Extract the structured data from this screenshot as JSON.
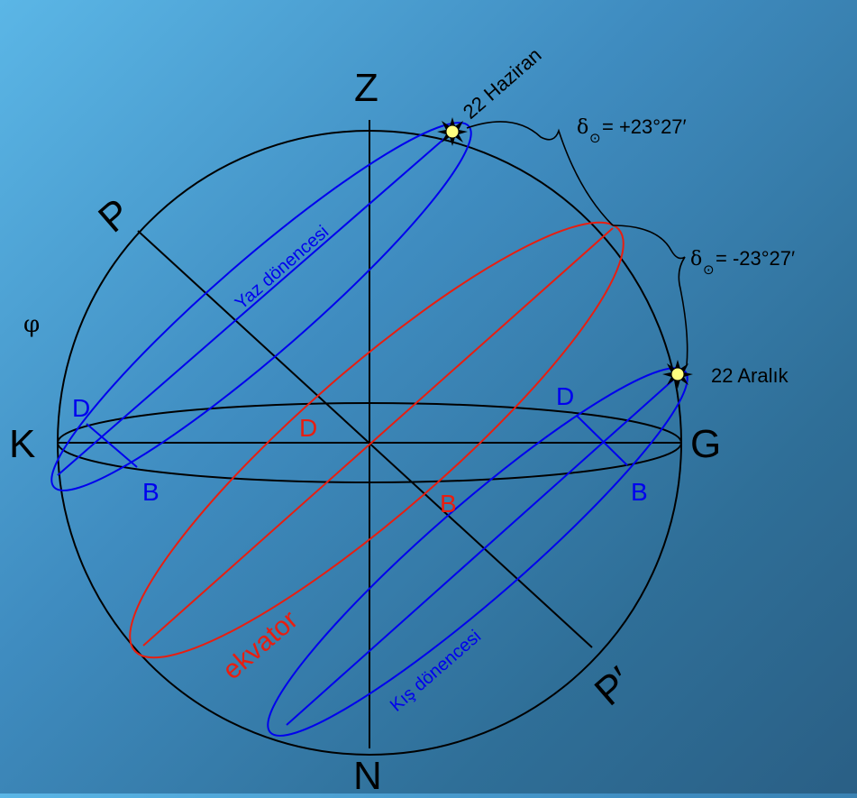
{
  "points": {
    "zenith": "Z",
    "nadir": "N",
    "north": "K",
    "south": "G",
    "pole": "P",
    "pole_south": "P′"
  },
  "latitude_symbol": "φ",
  "circles": {
    "summer": "Yaz dönencesi",
    "winter": "Kış dönencesi",
    "equator": "ekvator"
  },
  "dates": {
    "summer": "22 Haziran",
    "winter": "22 Aralık"
  },
  "declinations": {
    "delta_symbol": "δ",
    "sun_symbol": "⊙",
    "summer": " = +23°27′",
    "winter": " = -23°27′"
  },
  "horizon_points": {
    "summer_rise": "D",
    "summer_set": "B",
    "equator_rise": "D",
    "equator_set": "B",
    "winter_rise": "D",
    "winter_set": "B"
  },
  "colors": {
    "line": "#000000",
    "tropic": "#0000ee",
    "equator": "#e81e10",
    "sun": "#ffff80"
  }
}
